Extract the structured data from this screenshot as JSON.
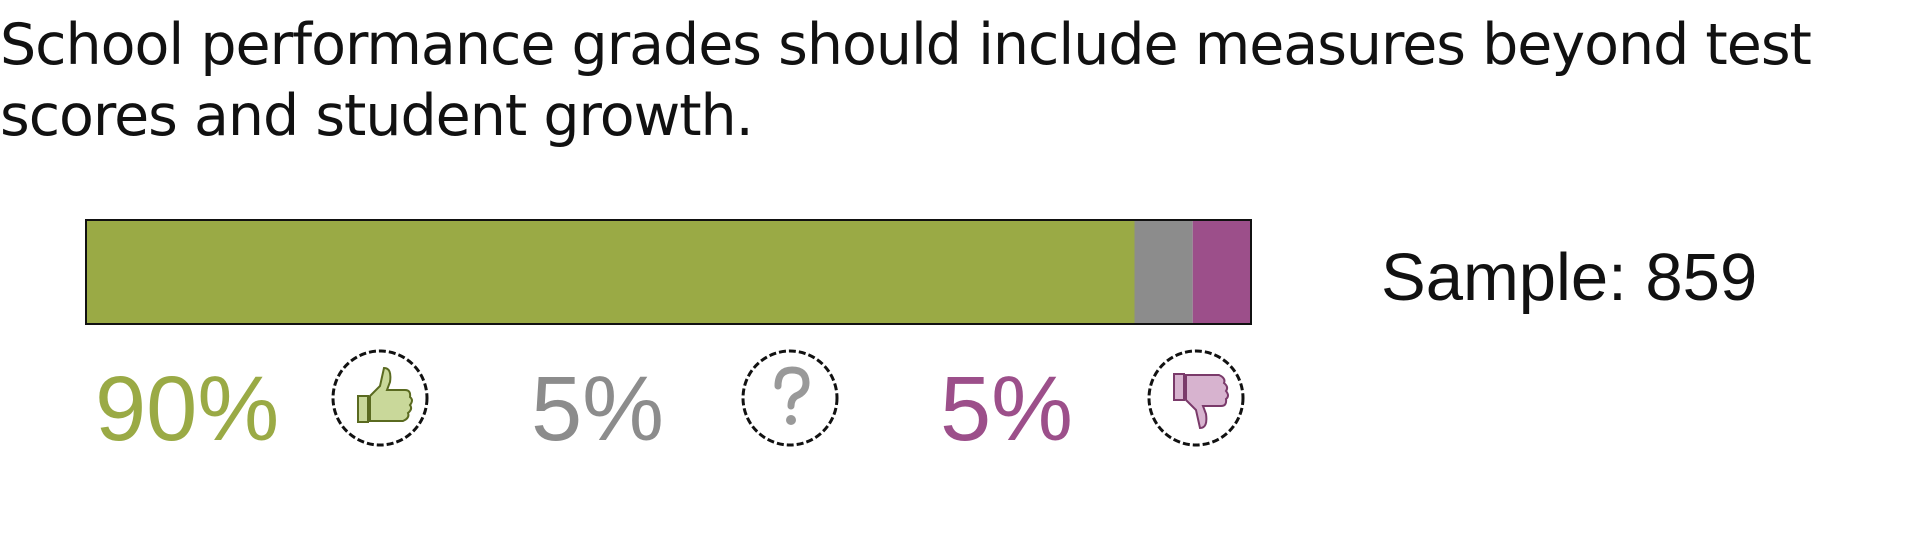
{
  "chart_data": {
    "type": "stacked-bar",
    "title": "School performance grades should include measures beyond test scores and student growth.",
    "series": [
      {
        "color": "#9aaa45",
        "values": [
          90
        ],
        "value_labels": [
          "90%"
        ]
      },
      {
        "color": "#8c8c8c",
        "values": [
          5
        ],
        "value_labels": [
          "5%"
        ]
      },
      {
        "color": "#9c4f8a",
        "values": [
          5
        ],
        "value_labels": [
          "5%"
        ]
      }
    ],
    "sample_label": "Sample:",
    "sample": 859
  }
}
